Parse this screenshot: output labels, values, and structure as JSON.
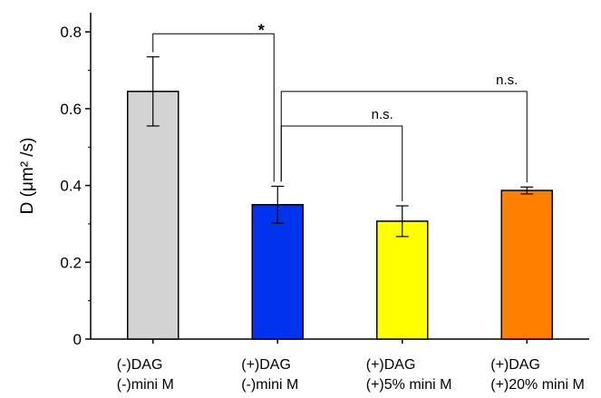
{
  "chart_data": {
    "type": "bar",
    "title": "",
    "xlabel": "",
    "ylabel": "D (μm² /s)",
    "ylim": [
      0,
      0.85
    ],
    "yticks": [
      0,
      0.2,
      0.4,
      0.6,
      0.8
    ],
    "ytick_labels": [
      "0",
      "0.2",
      "0.4",
      "0.6",
      "0.8"
    ],
    "categories": [
      [
        "(-)DAG",
        "(-)mini M"
      ],
      [
        "(+)DAG",
        "(-)mini M"
      ],
      [
        "(+)DAG",
        "(+)5% mini M"
      ],
      [
        "(+)DAG",
        "(+)20% mini M"
      ]
    ],
    "values": [
      0.645,
      0.35,
      0.307,
      0.387
    ],
    "errors": [
      0.09,
      0.048,
      0.04,
      0.009
    ],
    "colors": [
      "#d3d3d3",
      "#0033ee",
      "#ffff00",
      "#ff8000"
    ],
    "significance": [
      {
        "from": 0,
        "to": 1,
        "label": "*"
      },
      {
        "from": 1,
        "to": 2,
        "label": "n.s."
      },
      {
        "from": 1,
        "to": 3,
        "label": "n.s."
      }
    ],
    "grid": false
  }
}
